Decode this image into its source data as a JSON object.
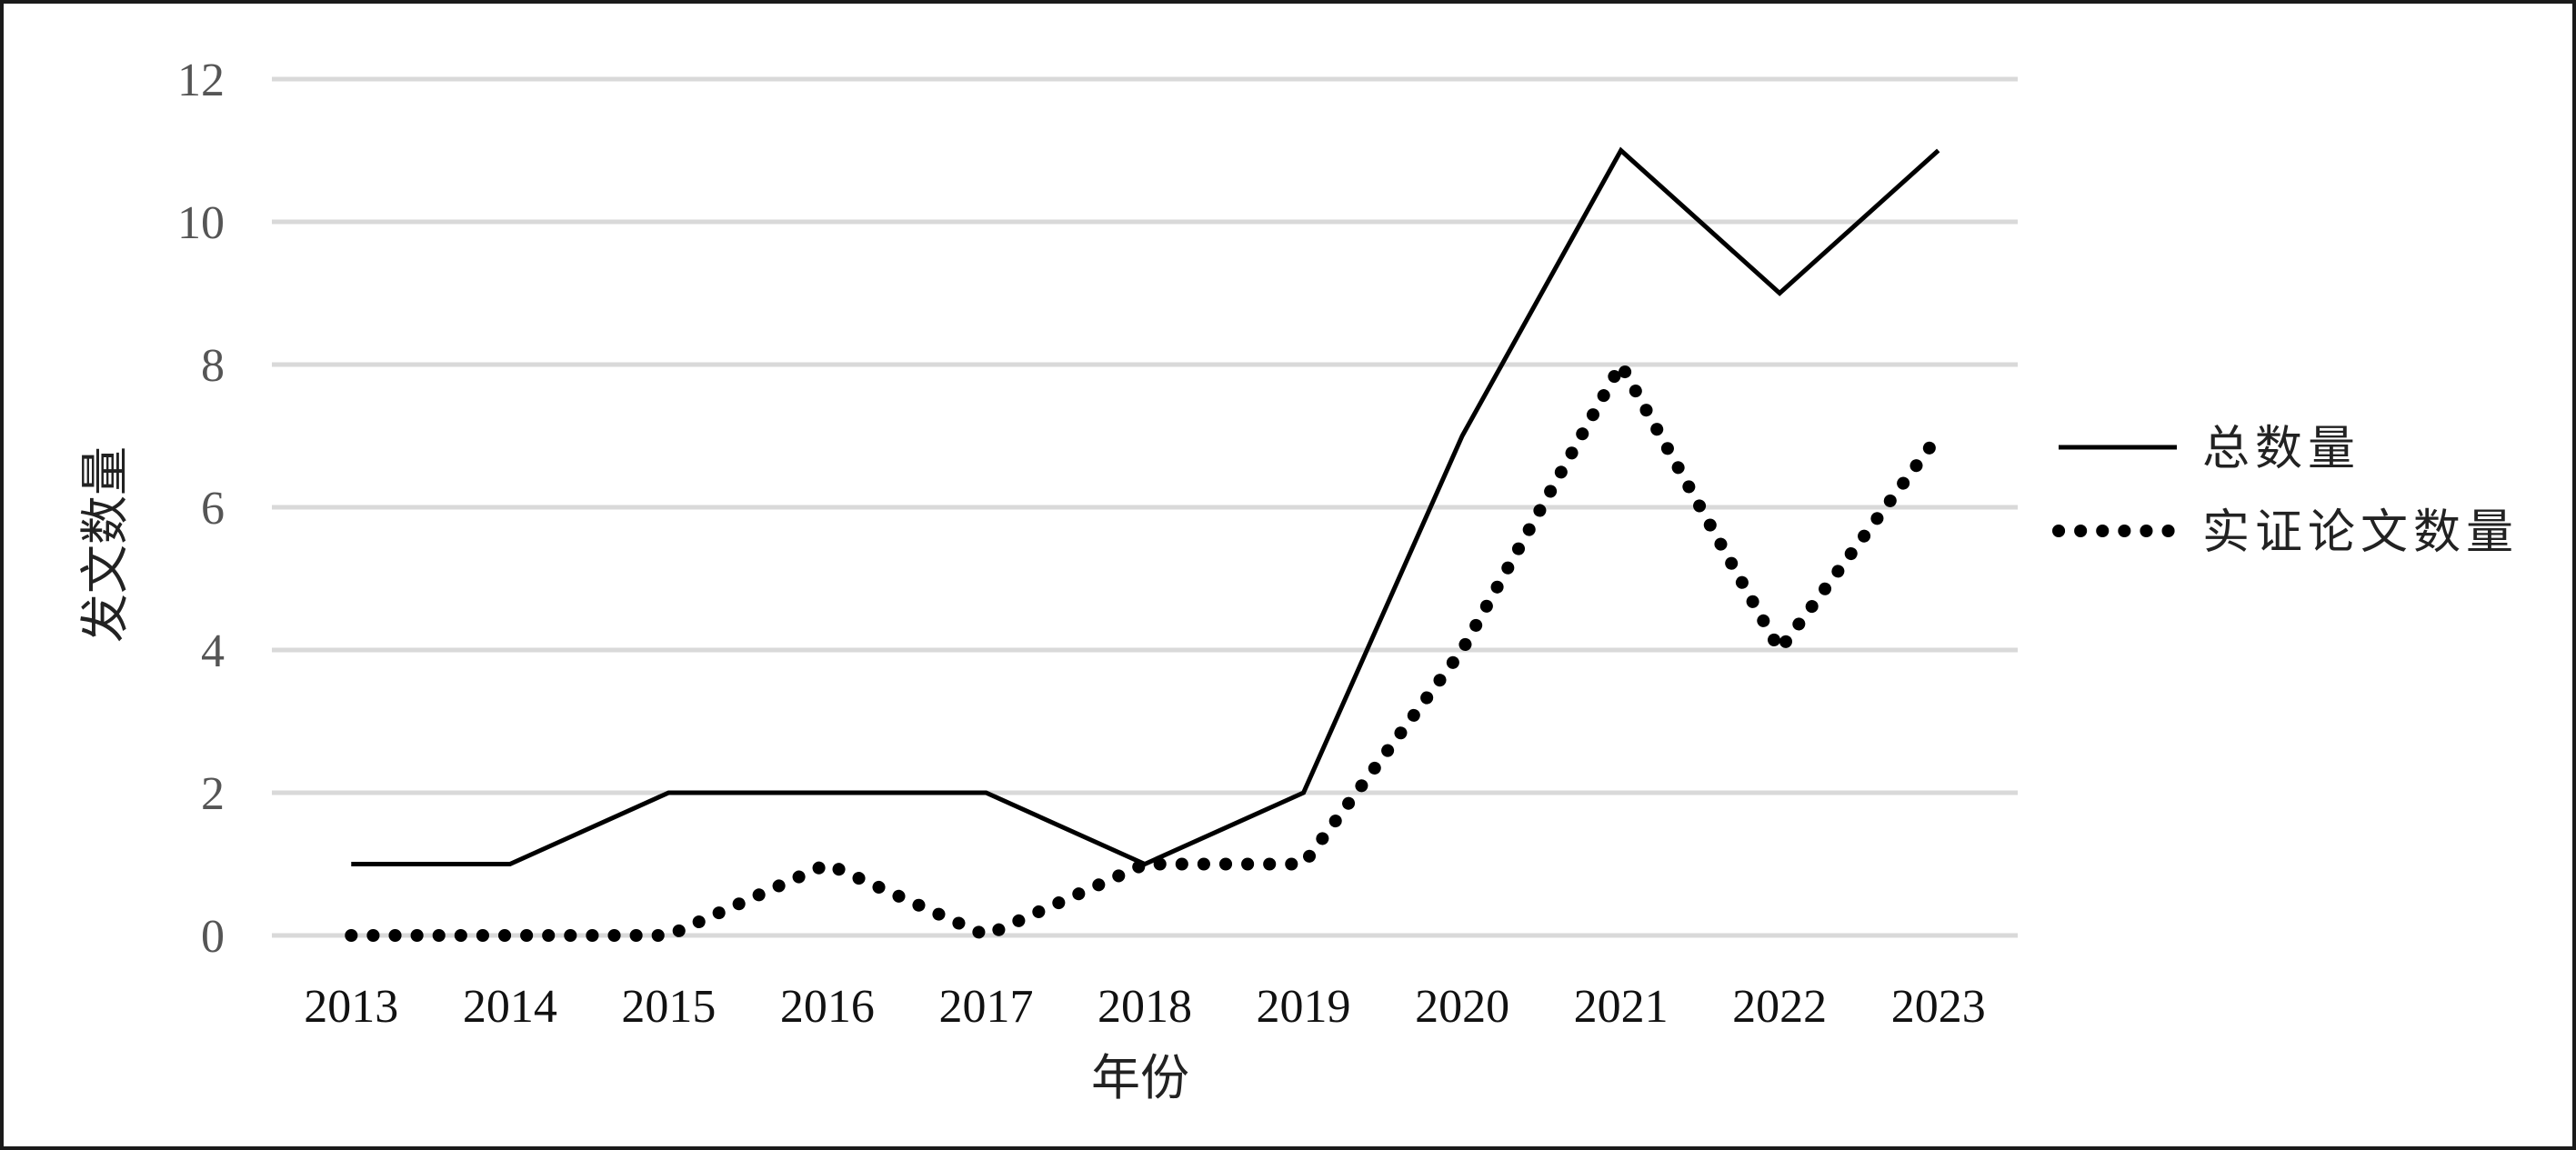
{
  "chart_data": {
    "type": "line",
    "xlabel": "年份",
    "ylabel": "发文数量",
    "categories": [
      "2013",
      "2014",
      "2015",
      "2016",
      "2017",
      "2018",
      "2019",
      "2020",
      "2021",
      "2022",
      "2023"
    ],
    "y_ticks": [
      "0",
      "2",
      "4",
      "6",
      "8",
      "10",
      "12"
    ],
    "ylim": [
      0,
      12
    ],
    "grid": true,
    "legend_position": "right",
    "series": [
      {
        "name": "总数量",
        "style": "solid",
        "color": "#000000",
        "values": [
          1,
          1,
          2,
          2,
          2,
          1,
          2,
          7,
          11,
          9,
          11
        ]
      },
      {
        "name": "实证论文数量",
        "style": "dotted",
        "color": "#000000",
        "values": [
          0,
          0,
          0,
          1,
          0,
          1,
          1,
          4,
          8,
          4,
          7
        ]
      }
    ],
    "gridline_color": "#d9d9d9"
  }
}
